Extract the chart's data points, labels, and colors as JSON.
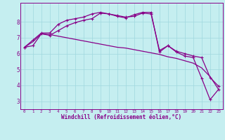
{
  "xlabel": "Windchill (Refroidissement éolien,°C)",
  "xmin": -0.5,
  "xmax": 23.5,
  "ymin": 2.5,
  "ymax": 9.2,
  "yticks": [
    3,
    4,
    5,
    6,
    7,
    8
  ],
  "bg_color": "#c5eef0",
  "grid_color": "#9fd8de",
  "line_color": "#880088",
  "line1_y": [
    6.4,
    6.75,
    7.25,
    7.2,
    7.1,
    7.0,
    6.9,
    6.8,
    6.7,
    6.6,
    6.5,
    6.4,
    6.35,
    6.25,
    6.15,
    6.05,
    5.95,
    5.8,
    5.7,
    5.55,
    5.4,
    5.1,
    4.55,
    3.75
  ],
  "line2_y": [
    6.4,
    6.85,
    7.3,
    7.3,
    7.85,
    8.1,
    8.2,
    8.3,
    8.5,
    8.6,
    8.5,
    8.35,
    8.25,
    8.45,
    8.6,
    8.6,
    6.1,
    6.5,
    6.1,
    5.85,
    5.75,
    4.45,
    3.1,
    3.75
  ],
  "line3_y": [
    6.4,
    6.5,
    7.25,
    7.15,
    7.45,
    7.75,
    7.95,
    8.1,
    8.2,
    8.55,
    8.5,
    8.4,
    8.3,
    8.35,
    8.55,
    8.5,
    6.2,
    6.5,
    6.15,
    6.0,
    5.85,
    5.75,
    4.5,
    3.95
  ]
}
